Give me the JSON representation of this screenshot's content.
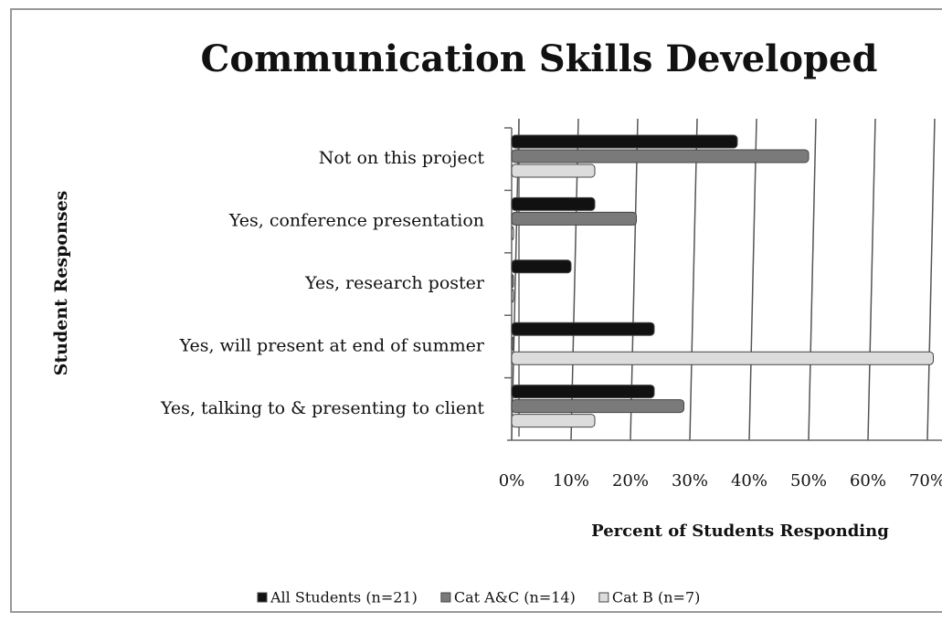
{
  "chart_data": {
    "type": "hbar",
    "title": "Communication Skills Developed",
    "xlabel": "Percent of Students Responding",
    "ylabel": "Student Responses",
    "categories": [
      "Not on this project",
      "Yes, conference presentation",
      "Yes, research poster",
      "Yes, will present at end of summer",
      "Yes, talking to & presenting to client"
    ],
    "series": [
      {
        "name": "All Students (n=21)",
        "color": "#111111",
        "values": [
          38,
          14,
          10,
          24,
          24
        ]
      },
      {
        "name": "Cat A&C (n=14)",
        "color": "#7a7a7a",
        "values": [
          50,
          21,
          0,
          0,
          29
        ]
      },
      {
        "name": "Cat B (n=7)",
        "color": "#dcdcdc",
        "values": [
          14,
          0,
          0,
          71,
          14
        ]
      }
    ],
    "xlim": [
      0,
      80
    ],
    "xticks": [
      {
        "value": 0,
        "label": "0%"
      },
      {
        "value": 10,
        "label": "10%"
      },
      {
        "value": 20,
        "label": "20%"
      },
      {
        "value": 30,
        "label": "30%"
      },
      {
        "value": 40,
        "label": "40%"
      },
      {
        "value": 50,
        "label": "50%"
      },
      {
        "value": 60,
        "label": "60%"
      },
      {
        "value": 70,
        "label": "70%"
      }
    ],
    "grid": true,
    "legend": "bottom"
  }
}
